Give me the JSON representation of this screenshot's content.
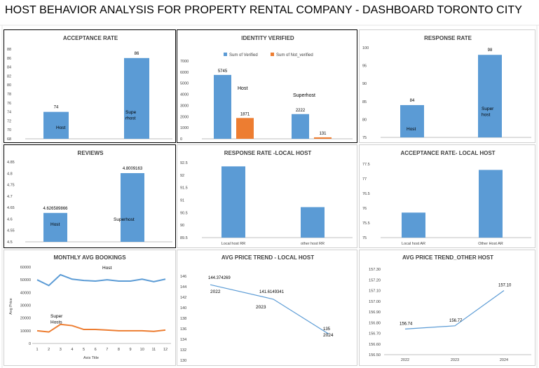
{
  "dashboard_title": "HOST BEHAVIOR ANALYSIS FOR PROPERTY RENTAL COMPANY - DASHBOARD TORONTO CITY",
  "colors": {
    "blue": "#5b9bd5",
    "orange": "#ed7d31",
    "axis": "#bfbfbf",
    "text": "#404040"
  },
  "chart_data": [
    {
      "id": "acceptance",
      "type": "bar",
      "title": "ACCEPTANCE RATE",
      "categories": [
        "Host",
        "Superhost"
      ],
      "bar_labels": [
        "Host",
        "Supe\nrhost"
      ],
      "values": [
        74,
        86
      ],
      "data_labels": [
        "74",
        "86"
      ],
      "yticks": [
        "68",
        "70",
        "72",
        "74",
        "76",
        "78",
        "80",
        "82",
        "84",
        "86",
        "88"
      ],
      "ylim": [
        68,
        88
      ],
      "grid": false
    },
    {
      "id": "identity",
      "type": "bar",
      "title": "IDENTITY  VERIFIED",
      "categories": [
        "Host",
        "Superhost"
      ],
      "series": [
        {
          "name": "Sum of Verified",
          "values": [
            5745,
            2222
          ],
          "data_labels": [
            "5745",
            "2222"
          ]
        },
        {
          "name": "Sum of Not_verified",
          "values": [
            1871,
            131
          ],
          "data_labels": [
            "1871",
            "131"
          ]
        }
      ],
      "yticks": [
        "0",
        "1000",
        "2000",
        "3000",
        "4000",
        "5000",
        "6000",
        "7000"
      ],
      "ylim": [
        0,
        7000
      ],
      "legend": "top",
      "grid": false
    },
    {
      "id": "response",
      "type": "bar",
      "title": "RESPONSE RATE",
      "categories": [
        "Host",
        "Superhost"
      ],
      "bar_labels": [
        "Host",
        "Super\nhost"
      ],
      "values": [
        84,
        98
      ],
      "data_labels": [
        "84",
        "98"
      ],
      "yticks": [
        "75",
        "80",
        "85",
        "90",
        "95",
        "100"
      ],
      "ylim": [
        75,
        100
      ],
      "grid": false
    },
    {
      "id": "reviews",
      "type": "bar",
      "title": "REVIEWS",
      "categories": [
        "Host",
        "Superhost"
      ],
      "bar_labels": [
        "Host",
        "Superhost"
      ],
      "values": [
        4.626589866,
        4.8009163
      ],
      "data_labels": [
        "4.626589866",
        "4.8009163"
      ],
      "yticks": [
        "4.5",
        "4.55",
        "4.6",
        "4.65",
        "4.7",
        "4.75",
        "4.8",
        "4.85"
      ],
      "ylim": [
        4.5,
        4.85
      ],
      "grid": false
    },
    {
      "id": "response_local",
      "type": "bar",
      "title": "RESPONSE RATE -LOCAL HOST",
      "categories": [
        "Local host RR",
        "other host RR"
      ],
      "values": [
        92.35,
        90.72
      ],
      "yticks": [
        "89.5",
        "90",
        "90.5",
        "91",
        "91.5",
        "92",
        "92.5"
      ],
      "ylim": [
        89.5,
        92.5
      ],
      "grid": false
    },
    {
      "id": "acceptance_local",
      "type": "bar",
      "title": "ACCEPTANCE RATE- LOCAL HOST",
      "categories": [
        "Local host AR",
        "Other Host AR"
      ],
      "values": [
        75.85,
        77.3
      ],
      "yticks": [
        "75",
        "75.5",
        "76",
        "76.5",
        "77",
        "77.5"
      ],
      "ylim": [
        75,
        77.5
      ],
      "grid": false
    },
    {
      "id": "monthly",
      "type": "line",
      "title": "MONTHLY AVG BOOKINGS",
      "x": [
        1,
        2,
        3,
        4,
        5,
        6,
        7,
        8,
        9,
        10,
        11,
        12
      ],
      "xticks": [
        "1",
        "2",
        "3",
        "4",
        "5",
        "6",
        "7",
        "8",
        "9",
        "10",
        "11",
        "12"
      ],
      "series": [
        {
          "name": "Host",
          "values": [
            50000,
            45500,
            54000,
            50500,
            49500,
            49000,
            50000,
            49000,
            49000,
            50500,
            48500,
            50500
          ]
        },
        {
          "name": "Super Hosts",
          "values": [
            10000,
            9000,
            15000,
            14000,
            11000,
            11000,
            10500,
            10000,
            10000,
            10000,
            9500,
            10500
          ]
        }
      ],
      "series_labels": [
        "Host",
        "Super\nHosts"
      ],
      "yticks": [
        "0",
        "10000",
        "20000",
        "30000",
        "40000",
        "50000",
        "60000"
      ],
      "ylim": [
        0,
        60000
      ],
      "xlabel": "Axis Title",
      "ylabel": "Avg Price",
      "grid": false
    },
    {
      "id": "price_local",
      "type": "line",
      "title": "AVG PRICE TREND - LOCAL HOST",
      "x": [
        "2022",
        "2023",
        "2024"
      ],
      "values": [
        144.374269,
        141.6149341,
        135
      ],
      "data_labels": [
        "144.374269",
        "141.6149341",
        "135"
      ],
      "point_labels": [
        "2022",
        "2023",
        "2024"
      ],
      "yticks": [
        "130",
        "132",
        "134",
        "136",
        "138",
        "140",
        "142",
        "144",
        "146"
      ],
      "ylim": [
        130,
        146
      ],
      "grid": false
    },
    {
      "id": "price_other",
      "type": "line",
      "title": "AVG PRICE TREND_OTHER HOST",
      "x": [
        "2022",
        "2023",
        "2024"
      ],
      "xticks": [
        "2022",
        "2023",
        "2024"
      ],
      "values": [
        156.74,
        156.77,
        157.1
      ],
      "data_labels": [
        "156.74",
        "156.77",
        "157.10"
      ],
      "yticks": [
        "156.50",
        "156.60",
        "156.70",
        "156.80",
        "156.90",
        "157.00",
        "157.10",
        "157.20",
        "157.30"
      ],
      "ylim": [
        156.5,
        157.3
      ],
      "grid": false
    }
  ]
}
